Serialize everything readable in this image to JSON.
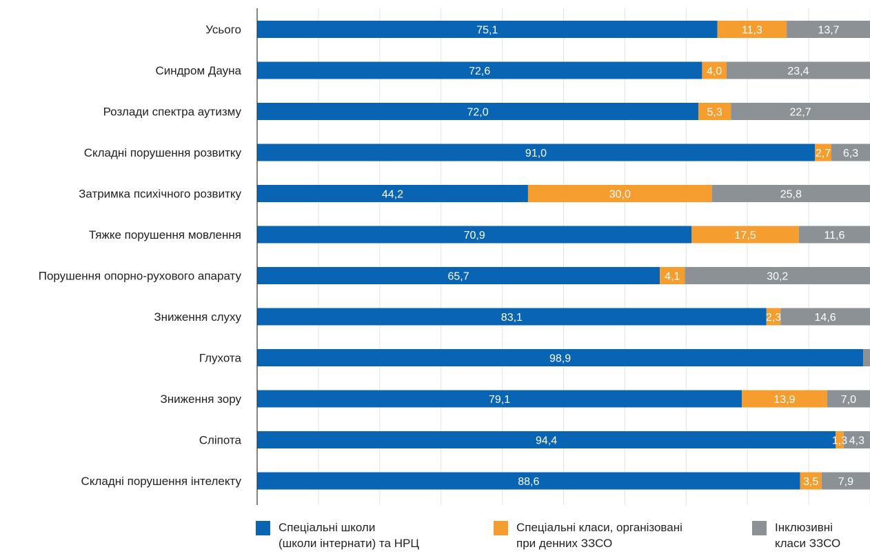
{
  "chart_data": {
    "type": "bar",
    "orientation": "horizontal",
    "stacked": true,
    "categories": [
      "Усього",
      "Синдром Дауна",
      "Розлади спектра аутизму",
      "Складні порушення розвитку",
      "Затримка психічного розвитку",
      "Тяжке порушення мовлення",
      "Порушення опорно-рухового апарату",
      "Зниження слуху",
      "Глухота",
      "Зниження зору",
      "Сліпота",
      "Складні порушення інтелекту"
    ],
    "series": [
      {
        "name": "Спеціальні школи (школи інтернати) та НРЦ",
        "legend_lines": [
          "Спеціальні школи",
          "(школи інтернати) та НРЦ"
        ],
        "color": "#0a64b4",
        "values": [
          75.1,
          72.6,
          72.0,
          91.0,
          44.2,
          70.9,
          65.7,
          83.1,
          98.9,
          79.1,
          94.4,
          88.6
        ],
        "labels": [
          "75,1",
          "72,6",
          "72,0",
          "91,0",
          "44,2",
          "70,9",
          "65,7",
          "83,1",
          "98,9",
          "79,1",
          "94,4",
          "88,6"
        ]
      },
      {
        "name": "Спеціальні класи, організовані при денних ЗЗСО",
        "legend_lines": [
          "Спеціальні класи, організовані",
          "при денних ЗЗСО"
        ],
        "color": "#f59e2f",
        "values": [
          11.3,
          4.0,
          5.3,
          2.7,
          30.0,
          17.5,
          4.1,
          2.3,
          0.0,
          13.9,
          1.3,
          3.5
        ],
        "labels": [
          "11,3",
          "4,0",
          "5,3",
          "2,7",
          "30,0",
          "17,5",
          "4,1",
          "2,3",
          "",
          "13,9",
          "1,3",
          "3,5"
        ]
      },
      {
        "name": "Інклюзивні класи ЗЗСО",
        "legend_lines": [
          "Інклюзивні",
          "класи ЗЗСО"
        ],
        "color": "#8c9196",
        "values": [
          13.7,
          23.4,
          22.7,
          6.3,
          25.8,
          11.6,
          30.2,
          14.6,
          1.1,
          7.0,
          4.3,
          7.9
        ],
        "labels": [
          "13,7",
          "23,4",
          "22,7",
          "6,3",
          "25,8",
          "11,6",
          "30,2",
          "14,6",
          "",
          "7,0",
          "4,3",
          "7,9"
        ]
      }
    ],
    "xlim": [
      0,
      100
    ],
    "grid": true,
    "legend_position": "bottom"
  }
}
